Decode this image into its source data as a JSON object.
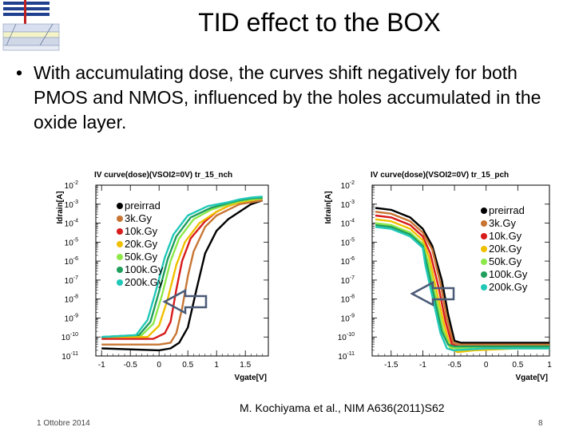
{
  "slide": {
    "title": "TID effect to the BOX",
    "bullet": "With accumulating dose, the curves shift negatively for both PMOS and NMOS, influenced by the holes accumulated in the oxide layer.",
    "citation": "M. Kochiyama et al., NIM A636(2011)S62",
    "date": "1 Ottobre 2014",
    "page": "8"
  },
  "chart_data": [
    {
      "type": "line",
      "title": "IV curve(dose)(VSOI2=0V) tr_15_nch",
      "xlabel": "Vgate[V]",
      "ylabel": "Idrain[A]",
      "xlim": [
        -1.1,
        1.9
      ],
      "ylim_exp": [
        -11,
        -2
      ],
      "yscale": "log",
      "x_ticks": [
        "-1",
        "-0.5",
        "0",
        "0.5",
        "1",
        "1.5"
      ],
      "y_ticks": [
        "10^-2",
        "10^-3",
        "10^-4",
        "10^-5",
        "10^-6",
        "10^-7",
        "10^-8",
        "10^-9",
        "10^-10",
        "10^-11"
      ],
      "legend_position": "top-left",
      "annotation": "arrow pointing left (negative shift)",
      "series": [
        {
          "name": "preirrad",
          "color": "#000000",
          "x": [
            -1.0,
            0.0,
            0.2,
            0.35,
            0.5,
            0.65,
            0.8,
            1.0,
            1.2,
            1.45,
            1.6,
            1.8
          ],
          "y_exp": [
            -10.6,
            -10.7,
            -10.6,
            -10.3,
            -9.5,
            -7.5,
            -5.6,
            -4.4,
            -3.8,
            -3.3,
            -3.0,
            -2.8
          ]
        },
        {
          "name": "3k.Gy",
          "color": "#c87533",
          "x": [
            -1.0,
            0.0,
            0.2,
            0.3,
            0.4,
            0.5,
            0.6,
            0.8,
            1.0,
            1.2,
            1.4,
            1.6,
            1.8
          ],
          "y_exp": [
            -10.4,
            -10.4,
            -10.3,
            -9.8,
            -8.5,
            -6.8,
            -5.5,
            -4.2,
            -3.6,
            -3.3,
            -3.0,
            -2.9,
            -2.8
          ]
        },
        {
          "name": "10k.Gy",
          "color": "#d81b1b",
          "x": [
            -1.0,
            -0.1,
            0.1,
            0.2,
            0.3,
            0.4,
            0.55,
            0.8,
            1.0,
            1.2,
            1.4,
            1.6,
            1.8
          ],
          "y_exp": [
            -10.1,
            -10.1,
            -9.8,
            -9.2,
            -7.5,
            -6.0,
            -4.8,
            -3.9,
            -3.4,
            -3.1,
            -2.9,
            -2.8,
            -2.7
          ]
        },
        {
          "name": "20k.Gy",
          "color": "#f0c000",
          "x": [
            -1.0,
            -0.2,
            0.0,
            0.15,
            0.3,
            0.45,
            0.7,
            1.0,
            1.2,
            1.4,
            1.6,
            1.8
          ],
          "y_exp": [
            -10.0,
            -10.0,
            -9.4,
            -8.0,
            -6.2,
            -5.0,
            -4.0,
            -3.4,
            -3.1,
            -2.9,
            -2.8,
            -2.7
          ]
        },
        {
          "name": "50k.Gy",
          "color": "#8ee84a",
          "x": [
            -1.0,
            -0.3,
            -0.1,
            0.05,
            0.2,
            0.35,
            0.6,
            0.9,
            1.2,
            1.4,
            1.6,
            1.8
          ],
          "y_exp": [
            -10.0,
            -9.9,
            -9.3,
            -7.8,
            -6.0,
            -4.8,
            -3.8,
            -3.3,
            -3.0,
            -2.85,
            -2.75,
            -2.7
          ]
        },
        {
          "name": "100k.Gy",
          "color": "#1f9e5c",
          "x": [
            -1.0,
            -0.35,
            -0.15,
            0.0,
            0.15,
            0.3,
            0.55,
            0.9,
            1.2,
            1.4,
            1.6,
            1.8
          ],
          "y_exp": [
            -10.0,
            -9.9,
            -9.2,
            -7.6,
            -5.9,
            -4.7,
            -3.7,
            -3.2,
            -2.95,
            -2.8,
            -2.7,
            -2.65
          ]
        },
        {
          "name": "200k.Gy",
          "color": "#20c8b8",
          "x": [
            -1.0,
            -0.4,
            -0.2,
            -0.05,
            0.1,
            0.25,
            0.5,
            0.85,
            1.2,
            1.4,
            1.6,
            1.8
          ],
          "y_exp": [
            -10.0,
            -9.9,
            -9.1,
            -7.5,
            -5.8,
            -4.6,
            -3.6,
            -3.1,
            -2.9,
            -2.75,
            -2.65,
            -2.6
          ]
        }
      ]
    },
    {
      "type": "line",
      "title": "IV curve(dose)(VSOI2=0V) tr_15_pch",
      "xlabel": "Vgate[V]",
      "ylabel": "Idrain[A]",
      "xlim": [
        -1.8,
        1.0
      ],
      "ylim_exp": [
        -11,
        -2
      ],
      "yscale": "log",
      "x_ticks": [
        "-1.5",
        "-1",
        "-0.5",
        "0",
        "0.5",
        "1"
      ],
      "y_ticks": [
        "10^-2",
        "10^-3",
        "10^-4",
        "10^-5",
        "10^-6",
        "10^-7",
        "10^-8",
        "10^-9",
        "10^-10",
        "10^-11"
      ],
      "legend_position": "top-right",
      "annotation": "arrow pointing left (negative shift)",
      "series": [
        {
          "name": "preirrad",
          "color": "#000000",
          "x": [
            -1.75,
            -1.5,
            -1.2,
            -1.0,
            -0.85,
            -0.7,
            -0.6,
            -0.5,
            -0.4,
            0.0,
            0.5,
            1.0
          ],
          "y_exp": [
            -3.2,
            -3.3,
            -3.7,
            -4.3,
            -5.2,
            -7.0,
            -8.8,
            -10.2,
            -10.3,
            -10.3,
            -10.3,
            -10.3
          ]
        },
        {
          "name": "3k.Gy",
          "color": "#c87533",
          "x": [
            -1.75,
            -1.5,
            -1.2,
            -1.0,
            -0.85,
            -0.72,
            -0.62,
            -0.52,
            -0.4,
            0.0,
            0.5,
            1.0
          ],
          "y_exp": [
            -3.4,
            -3.5,
            -3.9,
            -4.5,
            -5.4,
            -7.2,
            -9.0,
            -10.3,
            -10.4,
            -10.4,
            -10.4,
            -10.4
          ]
        },
        {
          "name": "10k.Gy",
          "color": "#d81b1b",
          "x": [
            -1.75,
            -1.5,
            -1.2,
            -1.0,
            -0.88,
            -0.75,
            -0.64,
            -0.54,
            -0.42,
            0.0,
            0.5,
            1.0
          ],
          "y_exp": [
            -3.6,
            -3.7,
            -4.1,
            -4.7,
            -5.6,
            -7.4,
            -9.2,
            -10.4,
            -10.5,
            -10.5,
            -10.5,
            -10.5
          ]
        },
        {
          "name": "20k.Gy",
          "color": "#f0c000",
          "x": [
            -1.75,
            -1.5,
            -1.2,
            -1.0,
            -0.9,
            -0.78,
            -0.66,
            -0.56,
            -0.45,
            -0.2,
            0.5,
            1.0
          ],
          "y_exp": [
            -3.8,
            -3.9,
            -4.3,
            -4.9,
            -5.8,
            -7.6,
            -9.4,
            -10.6,
            -10.8,
            -10.7,
            -10.6,
            -10.6
          ]
        },
        {
          "name": "50k.Gy",
          "color": "#8ee84a",
          "x": [
            -1.75,
            -1.5,
            -1.2,
            -1.0,
            -0.92,
            -0.8,
            -0.68,
            -0.58,
            -0.47,
            0.0,
            0.5,
            1.0
          ],
          "y_exp": [
            -4.0,
            -4.1,
            -4.5,
            -5.1,
            -6.0,
            -7.8,
            -9.6,
            -10.5,
            -10.6,
            -10.5,
            -10.5,
            -10.5
          ]
        },
        {
          "name": "100k.Gy",
          "color": "#1f9e5c",
          "x": [
            -1.75,
            -1.5,
            -1.2,
            -1.0,
            -0.94,
            -0.82,
            -0.7,
            -0.6,
            -0.5,
            0.0,
            0.5,
            1.0
          ],
          "y_exp": [
            -4.1,
            -4.2,
            -4.6,
            -5.2,
            -6.1,
            -7.9,
            -9.7,
            -10.4,
            -10.5,
            -10.5,
            -10.5,
            -10.5
          ]
        },
        {
          "name": "200k.Gy",
          "color": "#20c8b8",
          "x": [
            -1.75,
            -1.5,
            -1.2,
            -1.0,
            -0.96,
            -0.84,
            -0.72,
            -0.62,
            -0.52,
            0.0,
            0.5,
            1.0
          ],
          "y_exp": [
            -4.2,
            -4.3,
            -4.7,
            -5.3,
            -6.2,
            -8.0,
            -9.8,
            -10.6,
            -10.7,
            -10.6,
            -10.6,
            -10.6
          ]
        }
      ]
    }
  ]
}
